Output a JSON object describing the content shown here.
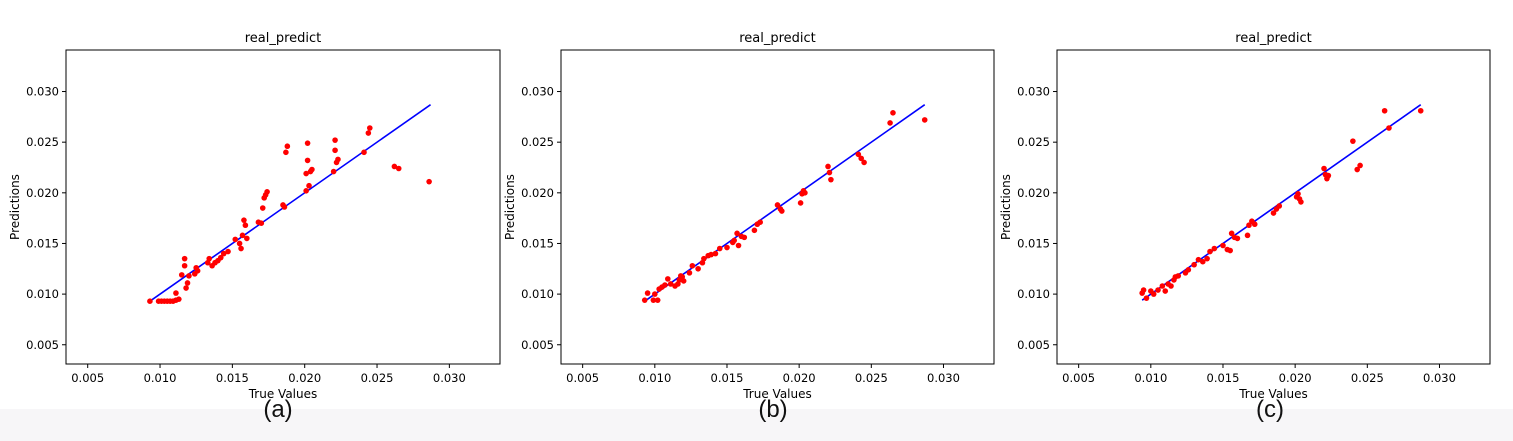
{
  "captions": [
    "(a)",
    "(b)",
    "(c)"
  ],
  "chart_data": [
    {
      "type": "scatter",
      "title": "real_predict",
      "xlabel": "True Values",
      "ylabel": "Predictions",
      "xlim": [
        0.0035,
        0.0335
      ],
      "ylim": [
        0.0031,
        0.0341
      ],
      "xticks": [
        0.005,
        0.01,
        0.015,
        0.02,
        0.025,
        0.03
      ],
      "yticks": [
        0.005,
        0.01,
        0.015,
        0.02,
        0.025,
        0.03
      ],
      "xtick_labels": [
        "0.005",
        "0.010",
        "0.015",
        "0.020",
        "0.025",
        "0.030"
      ],
      "ytick_labels": [
        "0.005",
        "0.010",
        "0.015",
        "0.020",
        "0.025",
        "0.030"
      ],
      "line": {
        "x": [
          0.0094,
          0.0287
        ],
        "y": [
          0.0094,
          0.0287
        ],
        "color": "#0000ff"
      },
      "point_color": "#ff0000",
      "points": [
        [
          0.0093,
          0.0093
        ],
        [
          0.0099,
          0.0093
        ],
        [
          0.0101,
          0.0093
        ],
        [
          0.0103,
          0.0093
        ],
        [
          0.0105,
          0.0093
        ],
        [
          0.0107,
          0.0093
        ],
        [
          0.0109,
          0.0093
        ],
        [
          0.0111,
          0.0094
        ],
        [
          0.0111,
          0.0101
        ],
        [
          0.0113,
          0.0095
        ],
        [
          0.0115,
          0.0119
        ],
        [
          0.0117,
          0.0128
        ],
        [
          0.0117,
          0.0135
        ],
        [
          0.0118,
          0.0106
        ],
        [
          0.0119,
          0.0111
        ],
        [
          0.012,
          0.0118
        ],
        [
          0.0124,
          0.012
        ],
        [
          0.0125,
          0.0126
        ],
        [
          0.0126,
          0.0123
        ],
        [
          0.0133,
          0.0131
        ],
        [
          0.0134,
          0.0135
        ],
        [
          0.0136,
          0.0128
        ],
        [
          0.0138,
          0.0131
        ],
        [
          0.014,
          0.0133
        ],
        [
          0.0142,
          0.0136
        ],
        [
          0.0144,
          0.014
        ],
        [
          0.0147,
          0.0142
        ],
        [
          0.0152,
          0.0154
        ],
        [
          0.0155,
          0.015
        ],
        [
          0.0156,
          0.0145
        ],
        [
          0.0157,
          0.0158
        ],
        [
          0.0158,
          0.0173
        ],
        [
          0.0159,
          0.0168
        ],
        [
          0.016,
          0.0155
        ],
        [
          0.0168,
          0.0171
        ],
        [
          0.017,
          0.017
        ],
        [
          0.0171,
          0.0185
        ],
        [
          0.0172,
          0.0195
        ],
        [
          0.0173,
          0.0198
        ],
        [
          0.0174,
          0.0201
        ],
        [
          0.0185,
          0.0188
        ],
        [
          0.0186,
          0.0186
        ],
        [
          0.0187,
          0.024
        ],
        [
          0.0188,
          0.0246
        ],
        [
          0.0201,
          0.0202
        ],
        [
          0.0201,
          0.0219
        ],
        [
          0.0202,
          0.0232
        ],
        [
          0.0202,
          0.0249
        ],
        [
          0.0203,
          0.0207
        ],
        [
          0.0204,
          0.0221
        ],
        [
          0.0205,
          0.0223
        ],
        [
          0.022,
          0.0221
        ],
        [
          0.0221,
          0.0242
        ],
        [
          0.0221,
          0.0252
        ],
        [
          0.0222,
          0.023
        ],
        [
          0.0223,
          0.0233
        ],
        [
          0.0241,
          0.024
        ],
        [
          0.0244,
          0.0259
        ],
        [
          0.0245,
          0.0264
        ],
        [
          0.0262,
          0.0226
        ],
        [
          0.0265,
          0.0224
        ],
        [
          0.0286,
          0.0211
        ]
      ]
    },
    {
      "type": "scatter",
      "title": "real_predict",
      "xlabel": "True Values",
      "ylabel": "Predictions",
      "xlim": [
        0.0035,
        0.0335
      ],
      "ylim": [
        0.0031,
        0.0341
      ],
      "xticks": [
        0.005,
        0.01,
        0.015,
        0.02,
        0.025,
        0.03
      ],
      "yticks": [
        0.005,
        0.01,
        0.015,
        0.02,
        0.025,
        0.03
      ],
      "xtick_labels": [
        "0.005",
        "0.010",
        "0.015",
        "0.020",
        "0.025",
        "0.030"
      ],
      "ytick_labels": [
        "0.005",
        "0.010",
        "0.015",
        "0.020",
        "0.025",
        "0.030"
      ],
      "line": {
        "x": [
          0.0094,
          0.0287
        ],
        "y": [
          0.0094,
          0.0287
        ],
        "color": "#0000ff"
      },
      "point_color": "#ff0000",
      "points": [
        [
          0.0093,
          0.0094
        ],
        [
          0.0095,
          0.0101
        ],
        [
          0.0099,
          0.0094
        ],
        [
          0.01,
          0.01
        ],
        [
          0.0102,
          0.0094
        ],
        [
          0.0103,
          0.0105
        ],
        [
          0.0105,
          0.0107
        ],
        [
          0.0107,
          0.0109
        ],
        [
          0.0109,
          0.0115
        ],
        [
          0.0111,
          0.011
        ],
        [
          0.0114,
          0.0108
        ],
        [
          0.0116,
          0.011
        ],
        [
          0.0117,
          0.0114
        ],
        [
          0.0118,
          0.0118
        ],
        [
          0.0119,
          0.0117
        ],
        [
          0.012,
          0.0113
        ],
        [
          0.0124,
          0.0121
        ],
        [
          0.0126,
          0.0128
        ],
        [
          0.013,
          0.0125
        ],
        [
          0.0133,
          0.0131
        ],
        [
          0.0134,
          0.0135
        ],
        [
          0.0137,
          0.0138
        ],
        [
          0.0139,
          0.0139
        ],
        [
          0.0142,
          0.014
        ],
        [
          0.0145,
          0.0145
        ],
        [
          0.015,
          0.0146
        ],
        [
          0.0154,
          0.0151
        ],
        [
          0.0155,
          0.0153
        ],
        [
          0.0157,
          0.016
        ],
        [
          0.0158,
          0.0148
        ],
        [
          0.016,
          0.0157
        ],
        [
          0.0162,
          0.0156
        ],
        [
          0.0169,
          0.0163
        ],
        [
          0.0171,
          0.0169
        ],
        [
          0.0173,
          0.0171
        ],
        [
          0.0185,
          0.0188
        ],
        [
          0.0187,
          0.0184
        ],
        [
          0.0188,
          0.0182
        ],
        [
          0.0201,
          0.019
        ],
        [
          0.0202,
          0.0199
        ],
        [
          0.0203,
          0.0202
        ],
        [
          0.0204,
          0.02
        ],
        [
          0.022,
          0.0226
        ],
        [
          0.0221,
          0.022
        ],
        [
          0.0222,
          0.0213
        ],
        [
          0.0241,
          0.0238
        ],
        [
          0.0243,
          0.0234
        ],
        [
          0.0245,
          0.023
        ],
        [
          0.0263,
          0.0269
        ],
        [
          0.0265,
          0.0279
        ],
        [
          0.0287,
          0.0272
        ]
      ]
    },
    {
      "type": "scatter",
      "title": "real_predict",
      "xlabel": "True Values",
      "ylabel": "Predictions",
      "xlim": [
        0.0035,
        0.0335
      ],
      "ylim": [
        0.0031,
        0.0341
      ],
      "xticks": [
        0.005,
        0.01,
        0.015,
        0.02,
        0.025,
        0.03
      ],
      "yticks": [
        0.005,
        0.01,
        0.015,
        0.02,
        0.025,
        0.03
      ],
      "xtick_labels": [
        "0.005",
        "0.010",
        "0.015",
        "0.020",
        "0.025",
        "0.030"
      ],
      "ytick_labels": [
        "0.005",
        "0.010",
        "0.015",
        "0.020",
        "0.025",
        "0.030"
      ],
      "line": {
        "x": [
          0.0094,
          0.0287
        ],
        "y": [
          0.0094,
          0.0287
        ],
        "color": "#0000ff"
      },
      "point_color": "#ff0000",
      "points": [
        [
          0.0094,
          0.0101
        ],
        [
          0.0095,
          0.0104
        ],
        [
          0.0097,
          0.0096
        ],
        [
          0.01,
          0.0103
        ],
        [
          0.0102,
          0.01
        ],
        [
          0.0105,
          0.0104
        ],
        [
          0.0108,
          0.0108
        ],
        [
          0.011,
          0.0103
        ],
        [
          0.0112,
          0.011
        ],
        [
          0.0114,
          0.0108
        ],
        [
          0.0116,
          0.0114
        ],
        [
          0.0117,
          0.0117
        ],
        [
          0.0119,
          0.0118
        ],
        [
          0.0124,
          0.0121
        ],
        [
          0.0126,
          0.0124
        ],
        [
          0.013,
          0.0129
        ],
        [
          0.0133,
          0.0134
        ],
        [
          0.0136,
          0.0132
        ],
        [
          0.0139,
          0.0135
        ],
        [
          0.0141,
          0.0142
        ],
        [
          0.0144,
          0.0145
        ],
        [
          0.015,
          0.0148
        ],
        [
          0.0153,
          0.0144
        ],
        [
          0.0155,
          0.0143
        ],
        [
          0.0156,
          0.016
        ],
        [
          0.0158,
          0.0156
        ],
        [
          0.016,
          0.0155
        ],
        [
          0.0167,
          0.0158
        ],
        [
          0.0168,
          0.0168
        ],
        [
          0.017,
          0.0172
        ],
        [
          0.0172,
          0.0169
        ],
        [
          0.0185,
          0.018
        ],
        [
          0.0187,
          0.0184
        ],
        [
          0.0189,
          0.0187
        ],
        [
          0.0201,
          0.0196
        ],
        [
          0.0202,
          0.0199
        ],
        [
          0.0203,
          0.0194
        ],
        [
          0.0204,
          0.0191
        ],
        [
          0.022,
          0.0224
        ],
        [
          0.0221,
          0.0218
        ],
        [
          0.0222,
          0.0214
        ],
        [
          0.0223,
          0.0217
        ],
        [
          0.024,
          0.0251
        ],
        [
          0.0243,
          0.0223
        ],
        [
          0.0245,
          0.0227
        ],
        [
          0.0262,
          0.0281
        ],
        [
          0.0265,
          0.0264
        ],
        [
          0.0287,
          0.0281
        ]
      ]
    }
  ]
}
